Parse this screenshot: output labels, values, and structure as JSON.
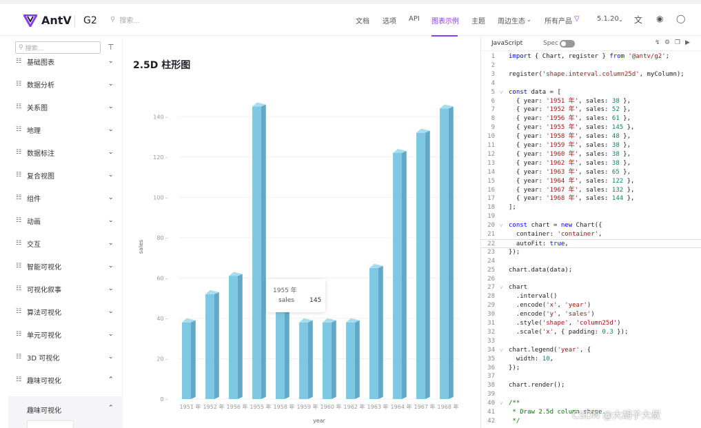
{
  "header": {
    "brand": "AntV",
    "product": "G2",
    "search_placeholder": "搜索...",
    "nav": [
      "文档",
      "选项",
      "API",
      "图表示例",
      "主题",
      "周边生态",
      "所有产品",
      "5.1.20"
    ],
    "active_nav": "图表示例"
  },
  "sidebar": {
    "search_placeholder": "搜索...",
    "items": [
      "基础图表",
      "数据分析",
      "关系图",
      "地理",
      "数据标注",
      "复合视图",
      "组件",
      "动画",
      "交互",
      "智能可视化",
      "可视化叙事",
      "算法可视化",
      "单元可视化",
      "3D 可视化",
      "趣味可视化"
    ],
    "sub_item": "趣味可视化"
  },
  "main": {
    "title": "2.5D 柱形图"
  },
  "chart_data": {
    "type": "bar",
    "categories": [
      "1951 年",
      "1952 年",
      "1956 年",
      "1955 年",
      "1958 年",
      "1959 年",
      "1960 年",
      "1962 年",
      "1963 年",
      "1964 年",
      "1967 年",
      "1968 年"
    ],
    "values": [
      38,
      52,
      61,
      145,
      48,
      38,
      38,
      38,
      65,
      122,
      132,
      144
    ],
    "xlabel": "year",
    "ylabel": "sales",
    "yticks": [
      "0",
      "20",
      "40",
      "60",
      "80",
      "100",
      "120",
      "140"
    ],
    "ylim": [
      0,
      150
    ],
    "bar_color": "#7ec8e3"
  },
  "tooltip": {
    "title": "1955 年",
    "key": "sales",
    "value": "145"
  },
  "editor": {
    "tab_js": "JavaScript",
    "tab_spec": "Spec",
    "lines": [
      "import { Chart, register } from '@antv/g2';",
      "",
      "register('shape.interval.column25d', myColumn);",
      "",
      "const data = [",
      "  { year: '1951 年', sales: 38 },",
      "  { year: '1952 年', sales: 52 },",
      "  { year: '1956 年', sales: 61 },",
      "  { year: '1955 年', sales: 145 },",
      "  { year: '1958 年', sales: 48 },",
      "  { year: '1959 年', sales: 38 },",
      "  { year: '1960 年', sales: 38 },",
      "  { year: '1962 年', sales: 38 },",
      "  { year: '1963 年', sales: 65 },",
      "  { year: '1964 年', sales: 122 },",
      "  { year: '1967 年', sales: 132 },",
      "  { year: '1968 年', sales: 144 },",
      "];",
      "",
      "const chart = new Chart({",
      "  container: 'container',",
      "  autoFit: true,",
      "});",
      "",
      "chart.data(data);",
      "",
      "chart",
      "  .interval()",
      "  .encode('x', 'year')",
      "  .encode('y', 'sales')",
      "  .style('shape', 'column25d')",
      "  .scale('x', { padding: 0.3 });",
      "",
      "chart.legend('year', {",
      "  width: 10,",
      "});",
      "",
      "chart.render();",
      "",
      "/**",
      " * Draw 2.5d column shape.",
      " */"
    ]
  },
  "watermark": "CSDN @大胡子大叔"
}
